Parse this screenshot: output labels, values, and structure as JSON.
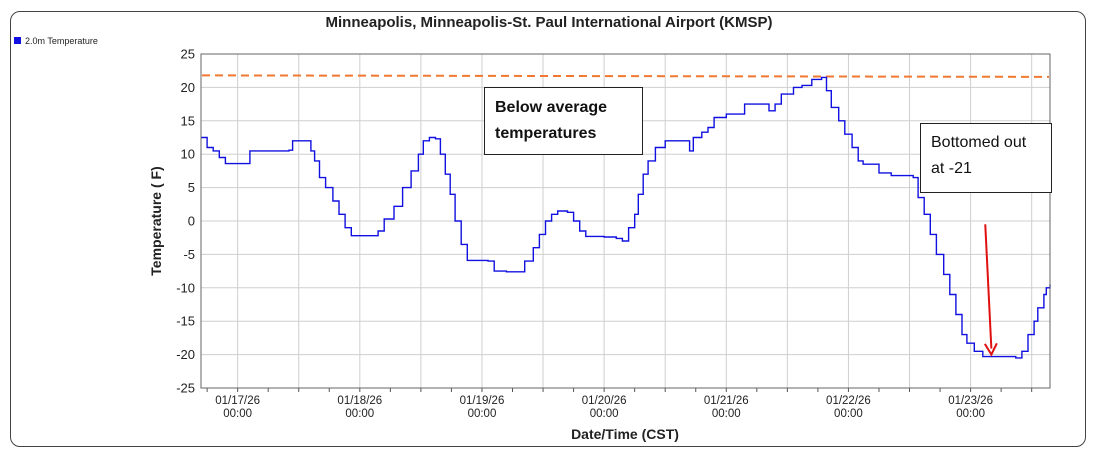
{
  "chart_data": {
    "type": "line",
    "title": "Minneapolis, Minneapolis-St. Paul International Airport (KMSP)",
    "xlabel": "Date/Time (CST)",
    "ylabel": "Temperature ( F)",
    "ylim": [
      -25,
      25
    ],
    "yticks": [
      25,
      20,
      15,
      10,
      5,
      0,
      -5,
      -10,
      -15,
      -20,
      -25
    ],
    "xlim": [
      -0.3,
      6.65
    ],
    "xticks": [
      {
        "pos": 0,
        "date": "01/17/26",
        "time": "00:00"
      },
      {
        "pos": 1,
        "date": "01/18/26",
        "time": "00:00"
      },
      {
        "pos": 2,
        "date": "01/19/26",
        "time": "00:00"
      },
      {
        "pos": 3,
        "date": "01/20/26",
        "time": "00:00"
      },
      {
        "pos": 4,
        "date": "01/21/26",
        "time": "00:00"
      },
      {
        "pos": 5,
        "date": "01/22/26",
        "time": "00:00"
      },
      {
        "pos": 6,
        "date": "01/23/26",
        "time": "00:00"
      }
    ],
    "grid": true,
    "legend": {
      "placement": "top-left",
      "entries": [
        "2.0m Temperature"
      ]
    },
    "series": [
      {
        "name": "2.0m Temperature",
        "color": "#1010e0",
        "points": [
          [
            -0.3,
            12.5
          ],
          [
            -0.25,
            11
          ],
          [
            -0.2,
            10.5
          ],
          [
            -0.15,
            9.5
          ],
          [
            -0.1,
            8.6
          ],
          [
            0.0,
            8.6
          ],
          [
            0.08,
            8.6
          ],
          [
            0.1,
            10.5
          ],
          [
            0.2,
            10.5
          ],
          [
            0.3,
            10.5
          ],
          [
            0.42,
            10.6
          ],
          [
            0.45,
            12
          ],
          [
            0.55,
            12
          ],
          [
            0.6,
            10.5
          ],
          [
            0.63,
            9
          ],
          [
            0.67,
            6.5
          ],
          [
            0.72,
            5
          ],
          [
            0.78,
            3
          ],
          [
            0.83,
            1
          ],
          [
            0.88,
            -1
          ],
          [
            0.93,
            -2.2
          ],
          [
            1.0,
            -2.2
          ],
          [
            1.1,
            -2.2
          ],
          [
            1.15,
            -1.5
          ],
          [
            1.2,
            0.3
          ],
          [
            1.28,
            2.2
          ],
          [
            1.35,
            5
          ],
          [
            1.42,
            7.5
          ],
          [
            1.48,
            10
          ],
          [
            1.52,
            12
          ],
          [
            1.57,
            12.5
          ],
          [
            1.62,
            12.3
          ],
          [
            1.66,
            10
          ],
          [
            1.7,
            7
          ],
          [
            1.74,
            4
          ],
          [
            1.78,
            0
          ],
          [
            1.83,
            -3.5
          ],
          [
            1.88,
            -5.9
          ],
          [
            2.0,
            -5.9
          ],
          [
            2.05,
            -6
          ],
          [
            2.1,
            -7.5
          ],
          [
            2.2,
            -7.6
          ],
          [
            2.3,
            -7.6
          ],
          [
            2.35,
            -6
          ],
          [
            2.42,
            -4
          ],
          [
            2.47,
            -2
          ],
          [
            2.52,
            0
          ],
          [
            2.57,
            1
          ],
          [
            2.62,
            1.5
          ],
          [
            2.7,
            1.3
          ],
          [
            2.75,
            0
          ],
          [
            2.8,
            -1.5
          ],
          [
            2.85,
            -2.3
          ],
          [
            3.0,
            -2.4
          ],
          [
            3.1,
            -2.6
          ],
          [
            3.15,
            -3
          ],
          [
            3.2,
            -1
          ],
          [
            3.25,
            1
          ],
          [
            3.28,
            4
          ],
          [
            3.32,
            7
          ],
          [
            3.36,
            9
          ],
          [
            3.42,
            11
          ],
          [
            3.5,
            12
          ],
          [
            3.65,
            12
          ],
          [
            3.7,
            10.5
          ],
          [
            3.73,
            12.5
          ],
          [
            3.8,
            13.3
          ],
          [
            3.85,
            14
          ],
          [
            3.9,
            15.5
          ],
          [
            4.0,
            16
          ],
          [
            4.1,
            16
          ],
          [
            4.15,
            17.5
          ],
          [
            4.3,
            17.5
          ],
          [
            4.35,
            16.5
          ],
          [
            4.4,
            17.5
          ],
          [
            4.45,
            19
          ],
          [
            4.55,
            20
          ],
          [
            4.62,
            20.3
          ],
          [
            4.7,
            21.2
          ],
          [
            4.78,
            21.5
          ],
          [
            4.82,
            19.5
          ],
          [
            4.86,
            17
          ],
          [
            4.92,
            15
          ],
          [
            4.97,
            13
          ],
          [
            5.03,
            11
          ],
          [
            5.08,
            9
          ],
          [
            5.12,
            8.5
          ],
          [
            5.2,
            8.5
          ],
          [
            5.25,
            7.2
          ],
          [
            5.35,
            6.8
          ],
          [
            5.45,
            6.8
          ],
          [
            5.53,
            6.5
          ],
          [
            5.57,
            3.5
          ],
          [
            5.62,
            1
          ],
          [
            5.67,
            -2
          ],
          [
            5.72,
            -5
          ],
          [
            5.78,
            -8
          ],
          [
            5.83,
            -11
          ],
          [
            5.88,
            -14
          ],
          [
            5.93,
            -17
          ],
          [
            5.97,
            -18.3
          ],
          [
            6.03,
            -19.5
          ],
          [
            6.1,
            -20.3
          ],
          [
            6.2,
            -20.3
          ],
          [
            6.3,
            -20.3
          ],
          [
            6.37,
            -20.5
          ],
          [
            6.42,
            -19.5
          ],
          [
            6.47,
            -17
          ],
          [
            6.52,
            -15
          ],
          [
            6.55,
            -13
          ],
          [
            6.6,
            -11
          ],
          [
            6.62,
            -10
          ],
          [
            6.65,
            -9.5
          ]
        ]
      }
    ],
    "reference_line": {
      "y": 21.8,
      "color": "#f07830",
      "style": "dashed"
    },
    "annotations": [
      {
        "text": "Below average temperatures"
      },
      {
        "text": "Bottomed out at -21"
      }
    ],
    "arrow": {
      "color": "#e01010",
      "from": [
        6.12,
        -0.5
      ],
      "to": [
        6.17,
        -20
      ]
    }
  }
}
